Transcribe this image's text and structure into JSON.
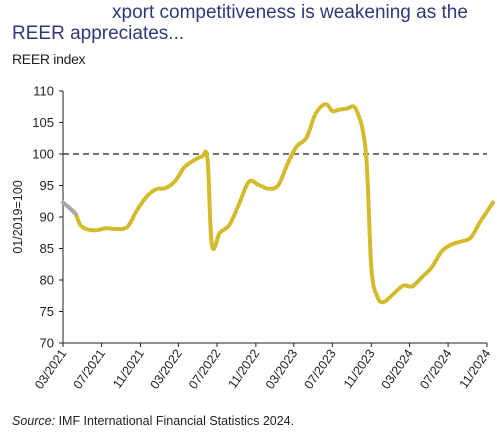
{
  "header": {
    "title_line1": "xport competitiveness is weakening as the",
    "title_line2": "REER appreciates..."
  },
  "chart_data": {
    "type": "line",
    "subtitle": "REER index",
    "ylabel": "01/2019=100",
    "xlabel": "",
    "ylim": [
      70,
      110
    ],
    "yticks": [
      70,
      75,
      80,
      85,
      90,
      95,
      100,
      105,
      110
    ],
    "xlim": [
      "2021-03",
      "2024-11"
    ],
    "xtick_labels": [
      "03/2021",
      "07/2021",
      "11/2021",
      "03/2022",
      "07/2022",
      "11/2022",
      "03/2023",
      "07/2023",
      "11/2023",
      "03/2024",
      "07/2024",
      "11/2024"
    ],
    "reference_line": {
      "y": 100,
      "style": "dashed"
    },
    "grid": false,
    "colors": {
      "line": "#d4bb2e",
      "line_start": "#a9a9a9",
      "reference": "#222222"
    },
    "series": [
      {
        "color": "#d4bb2e",
        "points": [
          [
            "2021-03-01",
            92.3
          ],
          [
            "2021-03-20",
            91.5
          ],
          [
            "2021-04-10",
            90.5
          ],
          [
            "2021-04-25",
            88.7
          ],
          [
            "2021-05-20",
            88.0
          ],
          [
            "2021-06-15",
            87.9
          ],
          [
            "2021-07-15",
            88.2
          ],
          [
            "2021-08-15",
            88.1
          ],
          [
            "2021-09-20",
            88.4
          ],
          [
            "2021-10-20",
            91.0
          ],
          [
            "2021-11-20",
            93.2
          ],
          [
            "2021-12-20",
            94.4
          ],
          [
            "2022-01-20",
            94.6
          ],
          [
            "2022-02-20",
            95.8
          ],
          [
            "2022-03-20",
            97.9
          ],
          [
            "2022-04-20",
            99.0
          ],
          [
            "2022-05-15",
            99.6
          ],
          [
            "2022-06-01",
            99.2
          ],
          [
            "2022-06-15",
            85.5
          ],
          [
            "2022-07-10",
            87.5
          ],
          [
            "2022-08-10",
            88.8
          ],
          [
            "2022-09-10",
            92.2
          ],
          [
            "2022-10-10",
            95.6
          ],
          [
            "2022-11-10",
            95.1
          ],
          [
            "2022-12-10",
            94.5
          ],
          [
            "2023-01-10",
            95.0
          ],
          [
            "2023-02-10",
            98.5
          ],
          [
            "2023-03-10",
            101.2
          ],
          [
            "2023-04-10",
            102.6
          ],
          [
            "2023-05-10",
            106.5
          ],
          [
            "2023-06-10",
            107.9
          ],
          [
            "2023-07-01",
            106.8
          ],
          [
            "2023-07-20",
            107.0
          ],
          [
            "2023-08-15",
            107.2
          ],
          [
            "2023-09-15",
            107.0
          ],
          [
            "2023-10-15",
            100.2
          ],
          [
            "2023-11-01",
            82.0
          ],
          [
            "2023-11-20",
            77.4
          ],
          [
            "2023-12-10",
            76.5
          ],
          [
            "2024-01-10",
            77.8
          ],
          [
            "2024-02-10",
            79.1
          ],
          [
            "2024-03-10",
            79.0
          ],
          [
            "2024-04-10",
            80.5
          ],
          [
            "2024-05-10",
            82.0
          ],
          [
            "2024-06-10",
            84.5
          ],
          [
            "2024-07-10",
            85.6
          ],
          [
            "2024-08-10",
            86.1
          ],
          [
            "2024-09-10",
            86.7
          ],
          [
            "2024-10-10",
            89.2
          ],
          [
            "2024-11-20",
            92.3
          ]
        ]
      }
    ]
  },
  "footer": {
    "source_label": "Source:",
    "source_text": " IMF International Financial Statistics 2024."
  }
}
